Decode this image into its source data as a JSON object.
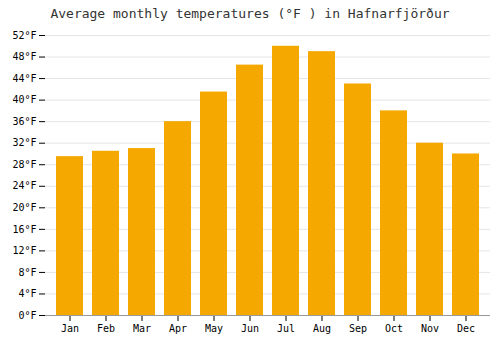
{
  "chart_data": {
    "type": "bar",
    "title": "Average monthly temperatures (°F ) in Hafnarfjörður",
    "categories": [
      "Jan",
      "Feb",
      "Mar",
      "Apr",
      "May",
      "Jun",
      "Jul",
      "Aug",
      "Sep",
      "Oct",
      "Nov",
      "Dec"
    ],
    "values": [
      29.5,
      30.5,
      31.0,
      36.0,
      41.5,
      46.5,
      50.0,
      49.0,
      43.0,
      38.0,
      32.0,
      30.0
    ],
    "color": "#F5A800",
    "ylim": [
      0,
      52
    ],
    "yticks": [
      {
        "value": 0,
        "label": "0°F"
      },
      {
        "value": 4,
        "label": "4°F"
      },
      {
        "value": 8,
        "label": "8°F"
      },
      {
        "value": 12,
        "label": "12°F"
      },
      {
        "value": 16,
        "label": "16°F"
      },
      {
        "value": 20,
        "label": "20°F"
      },
      {
        "value": 24,
        "label": "24°F"
      },
      {
        "value": 28,
        "label": "28°F"
      },
      {
        "value": 32,
        "label": "32°F"
      },
      {
        "value": 36,
        "label": "36°F"
      },
      {
        "value": 40,
        "label": "40°F"
      },
      {
        "value": 44,
        "label": "44°F"
      },
      {
        "value": 48,
        "label": "48°F"
      },
      {
        "value": 52,
        "label": "52°F"
      }
    ],
    "grid": true
  }
}
